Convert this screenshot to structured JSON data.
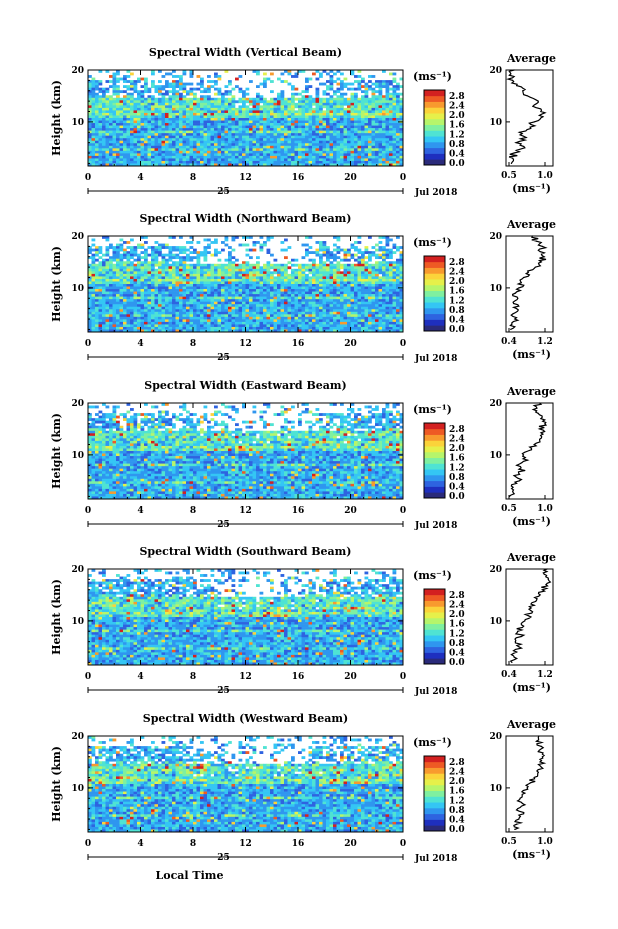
{
  "figure": {
    "ylabel": "Height (km)",
    "units_label": "(ms⁻¹)",
    "avg_title": "Average",
    "avg_xlabel": "(ms⁻¹)",
    "date_label": "Jul 2018",
    "day_label": "25",
    "xlabel": "Local Time",
    "x_ticks": [
      "0",
      "4",
      "8",
      "12",
      "16",
      "20",
      "0"
    ],
    "y_ticks": [
      "10",
      "20"
    ],
    "colorbar_ticks": [
      "0.0",
      "0.4",
      "0.8",
      "1.2",
      "1.6",
      "2.0",
      "2.4",
      "2.8"
    ],
    "colormap": [
      "#2a2a7a",
      "#1e2fbf",
      "#2e63e0",
      "#2f96ef",
      "#34c6f4",
      "#4fe3d3",
      "#7ff0a0",
      "#b6f56b",
      "#e6f04a",
      "#fbd33a",
      "#f89a2e",
      "#ee5a24",
      "#d32020"
    ]
  },
  "chart_data": [
    {
      "type": "heatmap",
      "title": "Spectral Width (Vertical Beam)",
      "xlabel": "",
      "ylabel": "Height (km)",
      "x_range_hours": [
        0,
        24
      ],
      "y_range_km": [
        1.5,
        20
      ],
      "colorbar_range": [
        0.0,
        2.8
      ],
      "avg_profile": {
        "title": "Average",
        "xlabel": "(ms⁻¹)",
        "x_ticks": [
          "0.5",
          "1.0"
        ],
        "x_range": [
          0.5,
          1.2
        ],
        "heights_km": [
          2,
          3,
          4,
          5,
          6,
          7,
          8,
          9,
          10,
          11,
          12,
          13,
          14,
          15,
          16,
          17,
          18,
          19,
          20
        ],
        "values": [
          0.58,
          0.6,
          0.62,
          0.78,
          0.65,
          0.8,
          0.7,
          0.86,
          0.92,
          1.05,
          1.02,
          0.9,
          0.98,
          0.82,
          0.75,
          0.66,
          0.6,
          0.55,
          0.62
        ]
      }
    },
    {
      "type": "heatmap",
      "title": "Spectral Width (Northward Beam)",
      "xlabel": "",
      "ylabel": "Height (km)",
      "x_range_hours": [
        0,
        24
      ],
      "y_range_km": [
        1.5,
        20
      ],
      "colorbar_range": [
        0.0,
        2.8
      ],
      "avg_profile": {
        "title": "Average",
        "xlabel": "(ms⁻¹)",
        "x_ticks": [
          "0.4",
          "1.2"
        ],
        "x_range": [
          0.4,
          1.2
        ],
        "heights_km": [
          2,
          3,
          4,
          5,
          6,
          7,
          8,
          9,
          10,
          11,
          12,
          13,
          14,
          15,
          16,
          17,
          18,
          19,
          20
        ],
        "values": [
          0.48,
          0.5,
          0.55,
          0.52,
          0.58,
          0.53,
          0.6,
          0.56,
          0.62,
          0.66,
          0.7,
          0.78,
          0.9,
          1.0,
          1.05,
          0.98,
          1.02,
          0.92,
          0.85
        ]
      }
    },
    {
      "type": "heatmap",
      "title": "Spectral Width (Eastward Beam)",
      "xlabel": "",
      "ylabel": "Height (km)",
      "x_range_hours": [
        0,
        24
      ],
      "y_range_km": [
        1.5,
        20
      ],
      "colorbar_range": [
        0.0,
        2.8
      ],
      "avg_profile": {
        "title": "Average",
        "xlabel": "(ms⁻¹)",
        "x_ticks": [
          "0.5",
          "1.0"
        ],
        "x_range": [
          0.5,
          1.2
        ],
        "heights_km": [
          2,
          3,
          4,
          5,
          6,
          7,
          8,
          9,
          10,
          11,
          12,
          13,
          14,
          15,
          16,
          17,
          18,
          19,
          20
        ],
        "values": [
          0.55,
          0.6,
          0.58,
          0.7,
          0.62,
          0.78,
          0.66,
          0.82,
          0.76,
          0.88,
          0.92,
          1.0,
          1.05,
          1.0,
          1.08,
          1.02,
          0.98,
          0.96,
          1.0
        ]
      }
    },
    {
      "type": "heatmap",
      "title": "Spectral Width (Southward Beam)",
      "xlabel": "",
      "ylabel": "Height (km)",
      "x_range_hours": [
        0,
        24
      ],
      "y_range_km": [
        1.5,
        20
      ],
      "colorbar_range": [
        0.0,
        2.8
      ],
      "avg_profile": {
        "title": "Average",
        "xlabel": "(ms⁻¹)",
        "x_ticks": [
          "0.4",
          "1.2"
        ],
        "x_range": [
          0.4,
          1.2
        ],
        "heights_km": [
          2,
          3,
          4,
          5,
          6,
          7,
          8,
          9,
          10,
          11,
          12,
          13,
          14,
          15,
          16,
          17,
          18,
          19,
          20
        ],
        "values": [
          0.5,
          0.54,
          0.58,
          0.62,
          0.56,
          0.66,
          0.6,
          0.7,
          0.72,
          0.78,
          0.82,
          0.88,
          0.92,
          0.98,
          1.02,
          1.08,
          1.12,
          1.05,
          1.1
        ]
      }
    },
    {
      "type": "heatmap",
      "title": "Spectral Width (Westward Beam)",
      "xlabel": "",
      "ylabel": "Height (km)",
      "x_range_hours": [
        0,
        24
      ],
      "y_range_km": [
        1.5,
        20
      ],
      "colorbar_range": [
        0.0,
        2.8
      ],
      "avg_profile": {
        "title": "Average",
        "xlabel": "(ms⁻¹)",
        "x_ticks": [
          "0.5",
          "1.0"
        ],
        "x_range": [
          0.4,
          1.2
        ],
        "heights_km": [
          2,
          3,
          4,
          5,
          6,
          7,
          8,
          9,
          10,
          11,
          12,
          13,
          14,
          15,
          16,
          17,
          18,
          19,
          20
        ],
        "values": [
          0.55,
          0.58,
          0.62,
          0.7,
          0.6,
          0.68,
          0.64,
          0.72,
          0.76,
          0.82,
          0.88,
          0.95,
          1.0,
          0.98,
          1.02,
          0.95,
          1.0,
          0.92,
          0.96
        ]
      }
    }
  ]
}
